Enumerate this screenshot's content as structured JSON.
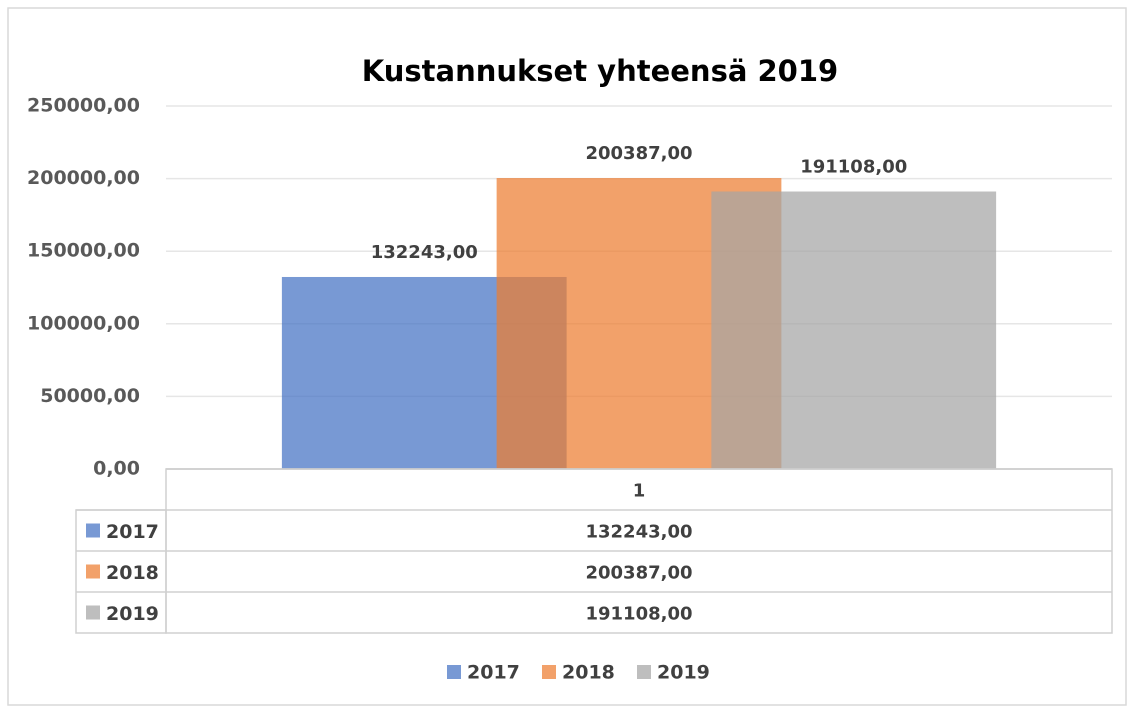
{
  "chart_data": {
    "type": "bar",
    "title": "Kustannukset yhteensä 2019",
    "categories": [
      "1"
    ],
    "series": [
      {
        "name": "2017",
        "color": "#4472c4",
        "values": [
          132243
        ],
        "value_labels": [
          "132243,00"
        ]
      },
      {
        "name": "2018",
        "color": "#ed7d31",
        "values": [
          200387
        ],
        "value_labels": [
          "200387,00"
        ]
      },
      {
        "name": "2019",
        "color": "#a5a5a5",
        "values": [
          191108
        ],
        "value_labels": [
          "191108,00"
        ]
      }
    ],
    "ylim": [
      0,
      250000
    ],
    "yticks": [
      {
        "value": 0,
        "label": "0,00"
      },
      {
        "value": 50000,
        "label": "50000,00"
      },
      {
        "value": 100000,
        "label": "100000,00"
      },
      {
        "value": 150000,
        "label": "150000,00"
      },
      {
        "value": 200000,
        "label": "200000,00"
      },
      {
        "value": 250000,
        "label": "250000,00"
      }
    ],
    "grid": true,
    "legend": "bottom",
    "data_table": true
  }
}
